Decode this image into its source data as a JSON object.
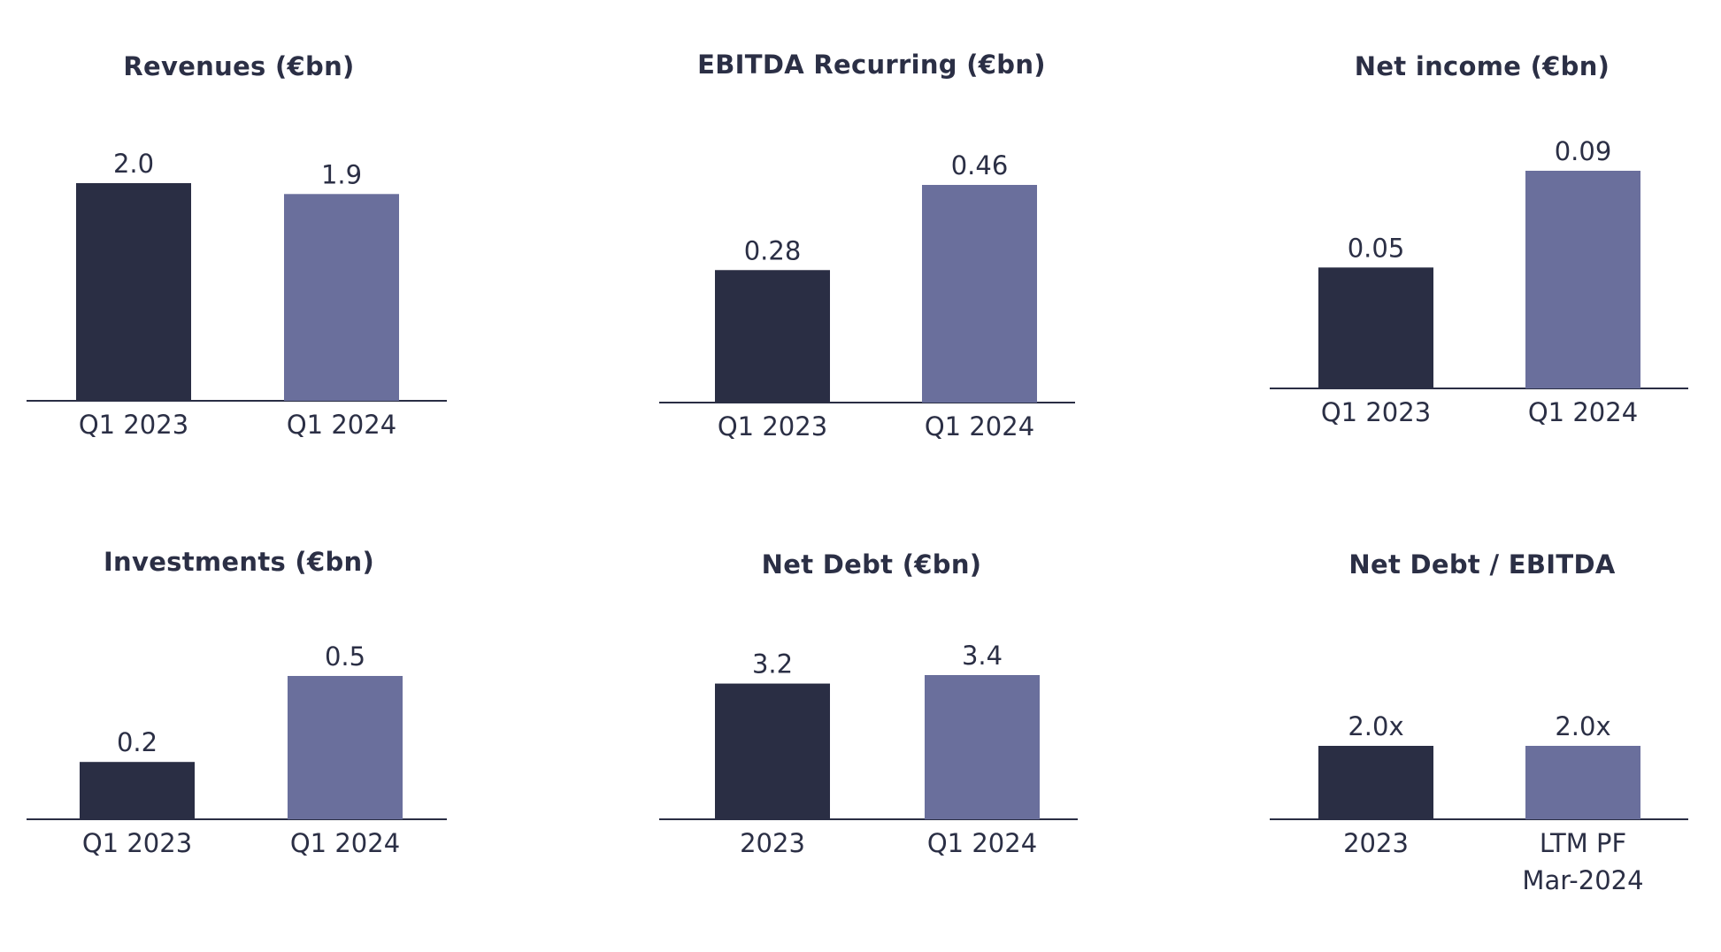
{
  "colors": {
    "series_2023": "#2a2e44",
    "series_2024": "#6a6f9c",
    "axis": "#2a2e44",
    "text": "#2b2f45"
  },
  "chart_data": [
    {
      "type": "bar",
      "title": "Revenues (€bn)",
      "categories": [
        "Q1 2023",
        "Q1 2024"
      ],
      "values": [
        2.0,
        1.9
      ],
      "value_labels": [
        "2.0",
        "1.9"
      ],
      "ylim": [
        0,
        2.0
      ]
    },
    {
      "type": "bar",
      "title": "EBITDA Recurring (€bn)",
      "categories": [
        "Q1 2023",
        "Q1 2024"
      ],
      "values": [
        0.28,
        0.46
      ],
      "value_labels": [
        "0.28",
        "0.46"
      ],
      "ylim": [
        0,
        0.46
      ]
    },
    {
      "type": "bar",
      "title": "Net income (€bn)",
      "categories": [
        "Q1 2023",
        "Q1 2024"
      ],
      "values": [
        0.05,
        0.09
      ],
      "value_labels": [
        "0.05",
        "0.09"
      ],
      "ylim": [
        0,
        0.09
      ]
    },
    {
      "type": "bar",
      "title": "Investments (€bn)",
      "categories": [
        "Q1 2023",
        "Q1 2024"
      ],
      "values": [
        0.2,
        0.5
      ],
      "value_labels": [
        "0.2",
        "0.5"
      ],
      "ylim": [
        0,
        0.5
      ]
    },
    {
      "type": "bar",
      "title": "Net Debt (€bn)",
      "categories": [
        "2023",
        "Q1 2024"
      ],
      "values": [
        3.2,
        3.4
      ],
      "value_labels": [
        "3.2",
        "3.4"
      ],
      "ylim": [
        0,
        3.4
      ]
    },
    {
      "type": "bar",
      "title": "Net Debt / EBITDA",
      "categories": [
        "2023",
        "LTM PF\nMar-2024"
      ],
      "values": [
        2.0,
        2.0
      ],
      "value_labels": [
        "2.0x",
        "2.0x"
      ],
      "ylim": [
        0,
        2.0
      ]
    }
  ]
}
